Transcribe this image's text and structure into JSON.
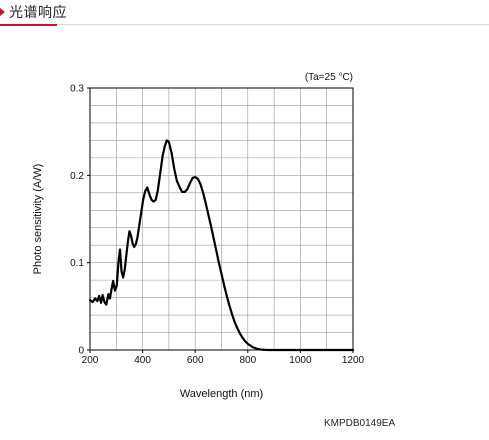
{
  "header": {
    "title": "光谱响应",
    "accent_color": "#c8102e"
  },
  "chart_data": {
    "type": "line",
    "annotation": "(Ta=25 °C)",
    "xlabel": "Wavelength (nm)",
    "ylabel": "Photo sensitivity (A/W)",
    "xlim": [
      200,
      1200
    ],
    "ylim": [
      0,
      0.3
    ],
    "x_ticks": [
      200,
      400,
      600,
      800,
      1000,
      1200
    ],
    "y_ticks": [
      0,
      0.1,
      0.2,
      0.3
    ],
    "x_tick_labels": [
      "200",
      "400",
      "600",
      "800",
      "1000",
      "1200"
    ],
    "y_tick_labels": [
      "0",
      "0.1",
      "0.2",
      "0.3"
    ],
    "grid": true,
    "series": [
      {
        "color": "#000000",
        "x": [
          200,
          210,
          220,
          228,
          235,
          242,
          248,
          255,
          262,
          270,
          276,
          282,
          288,
          295,
          302,
          308,
          314,
          320,
          326,
          332,
          338,
          344,
          350,
          356,
          362,
          368,
          374,
          380,
          387,
          395,
          402,
          410,
          418,
          426,
          434,
          442,
          450,
          458,
          464,
          470,
          476,
          484,
          492,
          500,
          510,
          520,
          530,
          540,
          550,
          560,
          570,
          580,
          590,
          600,
          610,
          620,
          630,
          640,
          650,
          660,
          670,
          680,
          690,
          700,
          710,
          720,
          730,
          740,
          750,
          760,
          770,
          780,
          790,
          800,
          810,
          820,
          830,
          840,
          850,
          860,
          870,
          880,
          890,
          900,
          910,
          920,
          930,
          940,
          950,
          960,
          970,
          980,
          990,
          1000,
          1010,
          1020,
          1030,
          1040,
          1050,
          1060,
          1080,
          1100,
          1120,
          1140,
          1160,
          1180,
          1200
        ],
        "y": [
          0.057,
          0.055,
          0.059,
          0.056,
          0.062,
          0.054,
          0.063,
          0.055,
          0.052,
          0.064,
          0.059,
          0.07,
          0.079,
          0.068,
          0.074,
          0.1,
          0.115,
          0.09,
          0.083,
          0.092,
          0.108,
          0.124,
          0.136,
          0.131,
          0.122,
          0.118,
          0.121,
          0.128,
          0.142,
          0.158,
          0.172,
          0.182,
          0.186,
          0.178,
          0.172,
          0.17,
          0.172,
          0.183,
          0.196,
          0.209,
          0.222,
          0.233,
          0.24,
          0.238,
          0.226,
          0.208,
          0.194,
          0.187,
          0.181,
          0.181,
          0.184,
          0.191,
          0.197,
          0.198,
          0.196,
          0.19,
          0.18,
          0.168,
          0.155,
          0.142,
          0.128,
          0.114,
          0.1,
          0.087,
          0.074,
          0.062,
          0.051,
          0.041,
          0.032,
          0.025,
          0.019,
          0.014,
          0.01,
          0.007,
          0.005,
          0.003,
          0.002,
          0.001,
          0.0005,
          0.0003,
          0.0001,
          0.0,
          0.0,
          0.0,
          0.0,
          0.0,
          0.0,
          0.0,
          0.0,
          0.0,
          0.0,
          0.0,
          0.0,
          0.0,
          0.0,
          0.0,
          0.0,
          0.0,
          0.0,
          0.0,
          0.0,
          0.0,
          0.0,
          0.0,
          0.0,
          0.0,
          0.0
        ]
      }
    ]
  },
  "footer": {
    "doc_code": "KMPDB0149EA"
  }
}
